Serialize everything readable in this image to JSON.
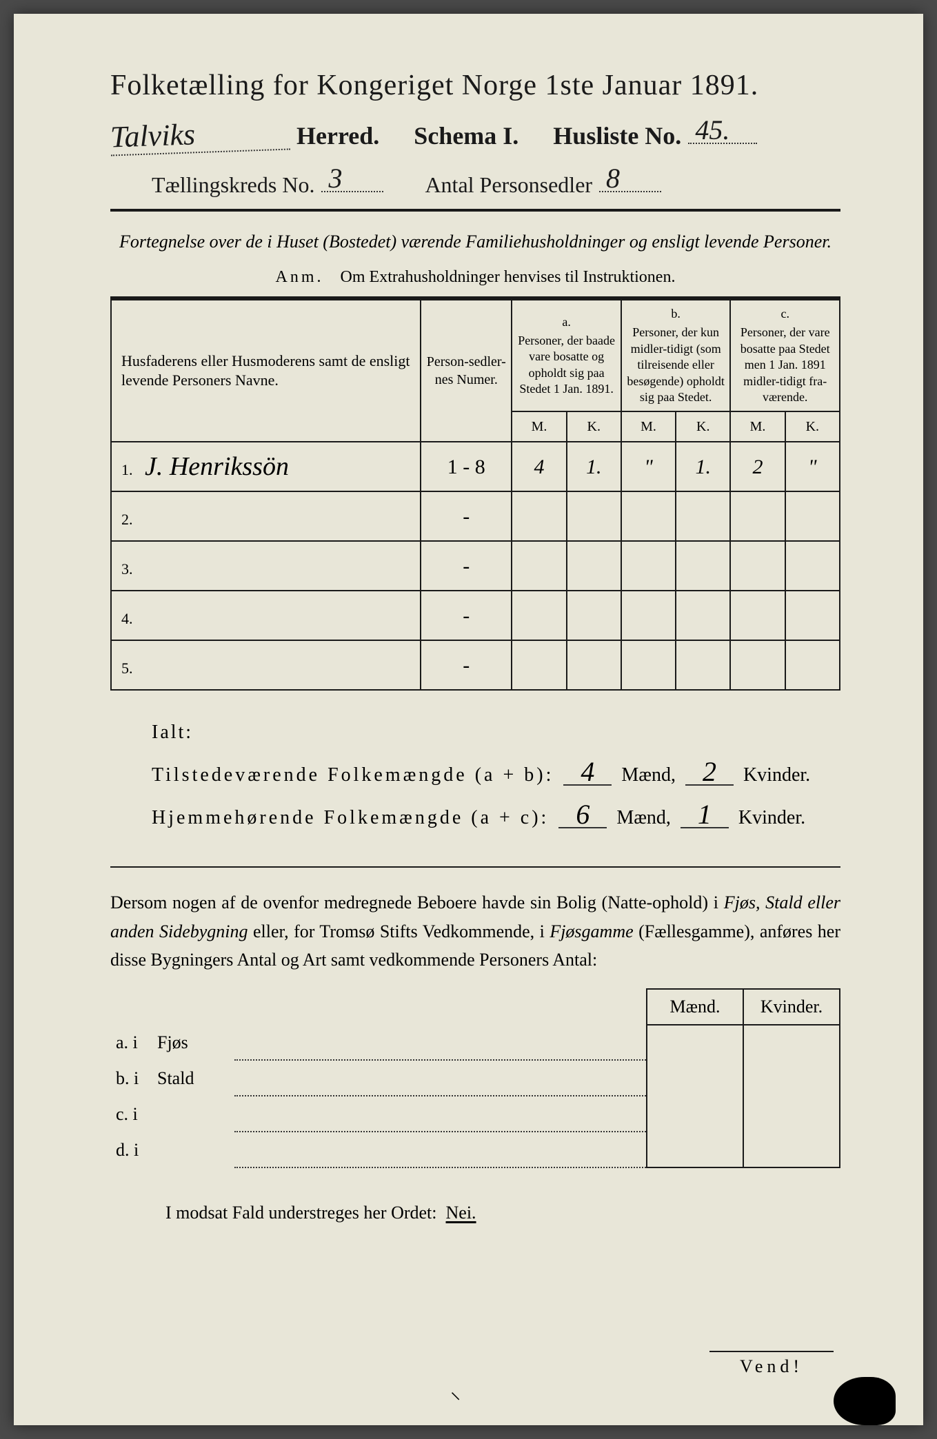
{
  "header": {
    "title": "Folketælling for Kongeriget Norge 1ste Januar 1891.",
    "herred_hw": "Talviks",
    "herred_label": "Herred.",
    "schema_label": "Schema I.",
    "husliste_label": "Husliste No.",
    "husliste_no": "45.",
    "kreds_label": "Tællingskreds No.",
    "kreds_no": "3",
    "antal_label": "Antal Personsedler",
    "antal_no": "8"
  },
  "subtitle": "Fortegnelse over de i Huset (Bostedet) værende Familiehusholdninger og ensligt levende Personer.",
  "anm_label": "Anm.",
  "anm_text": "Om Extrahusholdninger henvises til Instruktionen.",
  "table": {
    "col_names": "Husfaderens eller Husmoderens samt de ensligt levende Personers Navne.",
    "col_num": "Person-sedler-nes Numer.",
    "col_a_label": "a.",
    "col_a": "Personer, der baade vare bosatte og opholdt sig paa Stedet 1 Jan. 1891.",
    "col_b_label": "b.",
    "col_b": "Personer, der kun midler-tidigt (som tilreisende eller besøgende) opholdt sig paa Stedet.",
    "col_c_label": "c.",
    "col_c": "Personer, der vare bosatte paa Stedet men 1 Jan. 1891 midler-tidigt fra-værende.",
    "m": "M.",
    "k": "K.",
    "rows": [
      {
        "n": "1.",
        "name": "J. Henrikssön",
        "num": "1 - 8",
        "am": "4",
        "ak": "1.",
        "bm": "\"",
        "bk": "1.",
        "cm": "2",
        "ck": "\""
      },
      {
        "n": "2.",
        "name": "",
        "num": "-",
        "am": "",
        "ak": "",
        "bm": "",
        "bk": "",
        "cm": "",
        "ck": ""
      },
      {
        "n": "3.",
        "name": "",
        "num": "-",
        "am": "",
        "ak": "",
        "bm": "",
        "bk": "",
        "cm": "",
        "ck": ""
      },
      {
        "n": "4.",
        "name": "",
        "num": "-",
        "am": "",
        "ak": "",
        "bm": "",
        "bk": "",
        "cm": "",
        "ck": ""
      },
      {
        "n": "5.",
        "name": "",
        "num": "-",
        "am": "",
        "ak": "",
        "bm": "",
        "bk": "",
        "cm": "",
        "ck": ""
      }
    ]
  },
  "ialt": {
    "label": "Ialt:",
    "line1_a": "Tilstedeværende Folkemængde (a + b):",
    "line1_m": "4",
    "line1_k": "2",
    "line2_a": "Hjemmehørende Folkemængde (a + c):",
    "line2_m": "6",
    "line2_k": "1",
    "maend": "Mænd,",
    "kvinder": "Kvinder."
  },
  "para": "Dersom nogen af de ovenfor medregnede Beboere havde sin Bolig (Natte-ophold) i Fjøs, Stald eller anden Sidebygning eller, for Tromsø Stifts Vedkommende, i Fjøsgamme (Fællesgamme), anføres her disse Bygningers Antal og Art samt vedkommende Personers Antal:",
  "mk": {
    "maend": "Mænd.",
    "kvinder": "Kvinder.",
    "rows": [
      {
        "lbl": "a.  i",
        "type": "Fjøs"
      },
      {
        "lbl": "b.  i",
        "type": "Stald"
      },
      {
        "lbl": "c.  i",
        "type": ""
      },
      {
        "lbl": "d.  i",
        "type": ""
      }
    ]
  },
  "footer": "I modsat Fald understreges her Ordet:",
  "nei": "Nei.",
  "vend": "Vend!",
  "colors": {
    "paper": "#e8e6d8",
    "ink": "#1a1a1a",
    "background": "#4a4a4a"
  }
}
